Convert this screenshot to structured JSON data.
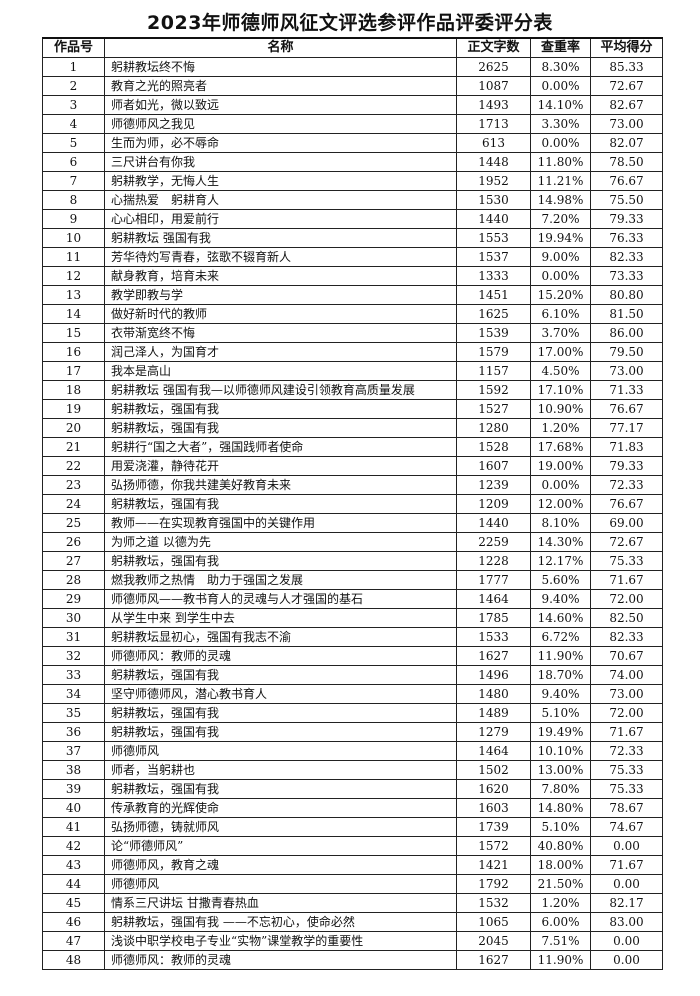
{
  "title": "2023年师德师风征文评选参评作品评委评分表",
  "columns": [
    "作品号",
    "名称",
    "正文字数",
    "查重率",
    "平均得分"
  ],
  "rows": [
    [
      "1",
      "躬耕教坛终不悔",
      "2625",
      "8.30%",
      "85.33"
    ],
    [
      "2",
      "教育之光的照亮者",
      "1087",
      "0.00%",
      "72.67"
    ],
    [
      "3",
      "师者如光，微以致远",
      "1493",
      "14.10%",
      "82.67"
    ],
    [
      "4",
      "师德师风之我见",
      "1713",
      "3.30%",
      "73.00"
    ],
    [
      "5",
      "生而为师，必不辱命",
      "613",
      "0.00%",
      "82.07"
    ],
    [
      "6",
      "三尺讲台有你我",
      "1448",
      "11.80%",
      "78.50"
    ],
    [
      "7",
      "躬耕教学，无悔人生",
      "1952",
      "11.21%",
      "76.67"
    ],
    [
      "8",
      "心揣热爱　躬耕育人",
      "1530",
      "14.98%",
      "75.50"
    ],
    [
      "9",
      "心心相印，用爱前行",
      "1440",
      "7.20%",
      "79.33"
    ],
    [
      "10",
      "躬耕教坛 强国有我",
      "1553",
      "19.94%",
      "76.33"
    ],
    [
      "11",
      "芳华待灼写青春，弦歌不辍育新人",
      "1537",
      "9.00%",
      "82.33"
    ],
    [
      "12",
      "献身教育，培育未来",
      "1333",
      "0.00%",
      "73.33"
    ],
    [
      "13",
      "教学即教与学",
      "1451",
      "15.20%",
      "80.80"
    ],
    [
      "14",
      "做好新时代的教师",
      "1625",
      "6.10%",
      "81.50"
    ],
    [
      "15",
      "衣带渐宽终不悔",
      "1539",
      "3.70%",
      "86.00"
    ],
    [
      "16",
      "润己泽人，为国育才",
      "1579",
      "17.00%",
      "79.50"
    ],
    [
      "17",
      "我本是高山",
      "1157",
      "4.50%",
      "73.00"
    ],
    [
      "18",
      "躬耕教坛 强国有我—以师德师风建设引领教育高质量发展",
      "1592",
      "17.10%",
      "71.33"
    ],
    [
      "19",
      "躬耕教坛，强国有我",
      "1527",
      "10.90%",
      "76.67"
    ],
    [
      "20",
      "躬耕教坛，强国有我",
      "1280",
      "1.20%",
      "77.17"
    ],
    [
      "21",
      "躬耕行“国之大者”，强国践师者使命",
      "1528",
      "17.68%",
      "71.83"
    ],
    [
      "22",
      "用爱浇灌，静待花开",
      "1607",
      "19.00%",
      "79.33"
    ],
    [
      "23",
      "弘扬师德，你我共建美好教育未来",
      "1239",
      "0.00%",
      "72.33"
    ],
    [
      "24",
      "躬耕教坛，强国有我",
      "1209",
      "12.00%",
      "76.67"
    ],
    [
      "25",
      "教师——在实现教育强国中的关键作用",
      "1440",
      "8.10%",
      "69.00"
    ],
    [
      "26",
      "为师之道 以德为先",
      "2259",
      "14.30%",
      "72.67"
    ],
    [
      "27",
      "躬耕教坛，强国有我",
      "1228",
      "12.17%",
      "75.33"
    ],
    [
      "28",
      "燃我教师之热情　助力于强国之发展",
      "1777",
      "5.60%",
      "71.67"
    ],
    [
      "29",
      "师德师风——教书育人的灵魂与人才强国的基石",
      "1464",
      "9.40%",
      "72.00"
    ],
    [
      "30",
      "从学生中来 到学生中去",
      "1785",
      "14.60%",
      "82.50"
    ],
    [
      "31",
      "躬耕教坛显初心，强国有我志不渝",
      "1533",
      "6.72%",
      "82.33"
    ],
    [
      "32",
      "师德师风：教师的灵魂",
      "1627",
      "11.90%",
      "70.67"
    ],
    [
      "33",
      "躬耕教坛，强国有我",
      "1496",
      "18.70%",
      "74.00"
    ],
    [
      "34",
      "坚守师德师风，潜心教书育人",
      "1480",
      "9.40%",
      "73.00"
    ],
    [
      "35",
      "躬耕教坛，强国有我",
      "1489",
      "5.10%",
      "72.00"
    ],
    [
      "36",
      "躬耕教坛，强国有我",
      "1279",
      "19.49%",
      "71.67"
    ],
    [
      "37",
      "师德师风",
      "1464",
      "10.10%",
      "72.33"
    ],
    [
      "38",
      "师者，当躬耕也",
      "1502",
      "13.00%",
      "75.33"
    ],
    [
      "39",
      "躬耕教坛，强国有我",
      "1620",
      "7.80%",
      "75.33"
    ],
    [
      "40",
      "传承教育的光辉使命",
      "1603",
      "14.80%",
      "78.67"
    ],
    [
      "41",
      "弘扬师德，铸就师风",
      "1739",
      "5.10%",
      "74.67"
    ],
    [
      "42",
      "论“师德师风”",
      "1572",
      "40.80%",
      "0.00"
    ],
    [
      "43",
      "师德师风，教育之魂",
      "1421",
      "18.00%",
      "71.67"
    ],
    [
      "44",
      "师德师风",
      "1792",
      "21.50%",
      "0.00"
    ],
    [
      "45",
      "情系三尺讲坛 甘撒青春热血",
      "1532",
      "1.20%",
      "82.17"
    ],
    [
      "46",
      "躬耕教坛，强国有我 ——不忘初心，使命必然",
      "1065",
      "6.00%",
      "83.00"
    ],
    [
      "47",
      "浅谈中职学校电子专业“实物”课堂教学的重要性",
      "2045",
      "7.51%",
      "0.00"
    ],
    [
      "48",
      "师德师风：教师的灵魂",
      "1627",
      "11.90%",
      "0.00"
    ]
  ]
}
